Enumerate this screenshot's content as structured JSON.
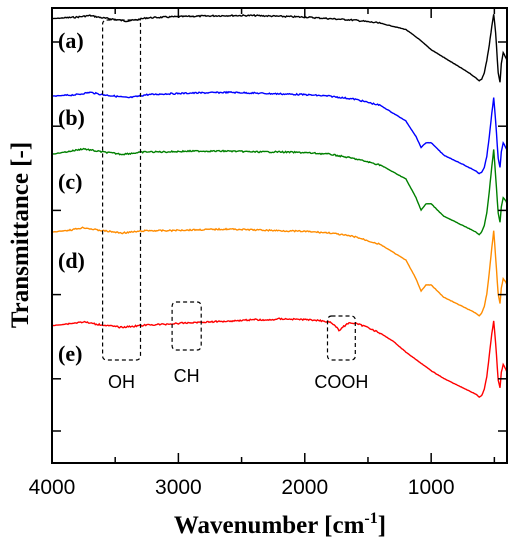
{
  "chart_data": {
    "type": "line",
    "xlabel": "Wavenumber [cm",
    "xlabel_superscript": "-1",
    "xlabel_suffix": "]",
    "ylabel": "Transmittance [-]",
    "xlim": [
      4000,
      400
    ],
    "x_reversed": true,
    "xticks": [
      4000,
      3000,
      2000,
      1000
    ],
    "xtick_labels": [
      "4000",
      "3000",
      "2000",
      "1000"
    ],
    "ylim": [
      0,
      100
    ],
    "ytick_count": 6,
    "grid": false,
    "legend": "none",
    "series": [
      {
        "name": "(a)",
        "color": "#000000",
        "offset": 85,
        "points": [
          [
            4000,
            97
          ],
          [
            3800,
            98
          ],
          [
            3700,
            99
          ],
          [
            3600,
            97.5
          ],
          [
            3500,
            96.5
          ],
          [
            3420,
            95.5
          ],
          [
            3350,
            96
          ],
          [
            3250,
            97.5
          ],
          [
            3100,
            98
          ],
          [
            2900,
            98.5
          ],
          [
            2600,
            99
          ],
          [
            2400,
            99
          ],
          [
            2200,
            98.5
          ],
          [
            2000,
            98
          ],
          [
            1800,
            97
          ],
          [
            1600,
            96
          ],
          [
            1400,
            94
          ],
          [
            1200,
            90
          ],
          [
            1100,
            84
          ],
          [
            1000,
            77
          ],
          [
            900,
            72
          ],
          [
            800,
            67
          ],
          [
            700,
            62
          ],
          [
            650,
            59
          ],
          [
            620,
            57
          ],
          [
            600,
            58
          ],
          [
            580,
            62
          ],
          [
            560,
            70
          ],
          [
            540,
            80
          ],
          [
            520,
            92
          ],
          [
            505,
            100
          ],
          [
            490,
            88
          ],
          [
            470,
            62
          ],
          [
            455,
            56
          ],
          [
            445,
            68
          ],
          [
            430,
            75
          ],
          [
            410,
            72
          ],
          [
            400,
            70
          ]
        ]
      },
      {
        "name": "(b)",
        "color": "#0000ff",
        "offset": 68,
        "points": [
          [
            4000,
            96
          ],
          [
            3800,
            97
          ],
          [
            3700,
            98.5
          ],
          [
            3600,
            97
          ],
          [
            3500,
            96
          ],
          [
            3400,
            95
          ],
          [
            3350,
            95.5
          ],
          [
            3250,
            97
          ],
          [
            3100,
            97.5
          ],
          [
            2900,
            98
          ],
          [
            2600,
            98.5
          ],
          [
            2400,
            98
          ],
          [
            2200,
            97.5
          ],
          [
            2000,
            97
          ],
          [
            1800,
            96
          ],
          [
            1600,
            94
          ],
          [
            1400,
            90
          ],
          [
            1200,
            80
          ],
          [
            1120,
            70
          ],
          [
            1080,
            63
          ],
          [
            1040,
            66
          ],
          [
            1000,
            66
          ],
          [
            950,
            62
          ],
          [
            900,
            58
          ],
          [
            800,
            54
          ],
          [
            700,
            50
          ],
          [
            650,
            48
          ],
          [
            620,
            46
          ],
          [
            600,
            47
          ],
          [
            580,
            50
          ],
          [
            560,
            57
          ],
          [
            540,
            70
          ],
          [
            520,
            85
          ],
          [
            505,
            95
          ],
          [
            490,
            80
          ],
          [
            470,
            56
          ],
          [
            455,
            50
          ],
          [
            445,
            60
          ],
          [
            430,
            66
          ],
          [
            410,
            63
          ],
          [
            400,
            61
          ]
        ]
      },
      {
        "name": "(c)",
        "color": "#008000",
        "offset": 51,
        "points": [
          [
            4000,
            96
          ],
          [
            3850,
            98
          ],
          [
            3750,
            99.5
          ],
          [
            3650,
            98
          ],
          [
            3550,
            97
          ],
          [
            3450,
            96
          ],
          [
            3380,
            96.5
          ],
          [
            3250,
            97.5
          ],
          [
            3100,
            97.5
          ],
          [
            2900,
            98
          ],
          [
            2600,
            98
          ],
          [
            2400,
            97.5
          ],
          [
            2200,
            97.5
          ],
          [
            2000,
            97
          ],
          [
            1800,
            96
          ],
          [
            1600,
            93
          ],
          [
            1400,
            89
          ],
          [
            1200,
            80
          ],
          [
            1120,
            68
          ],
          [
            1080,
            60
          ],
          [
            1040,
            64
          ],
          [
            1000,
            64
          ],
          [
            950,
            60
          ],
          [
            900,
            56
          ],
          [
            800,
            52
          ],
          [
            700,
            48
          ],
          [
            650,
            46
          ],
          [
            620,
            44
          ],
          [
            600,
            46
          ],
          [
            580,
            50
          ],
          [
            560,
            58
          ],
          [
            540,
            72
          ],
          [
            520,
            88
          ],
          [
            505,
            99
          ],
          [
            490,
            82
          ],
          [
            470,
            58
          ],
          [
            455,
            52
          ],
          [
            445,
            62
          ],
          [
            430,
            68
          ],
          [
            410,
            66
          ],
          [
            400,
            64
          ]
        ]
      },
      {
        "name": "(d)",
        "color": "#ff8c00",
        "offset": 34,
        "points": [
          [
            4000,
            96
          ],
          [
            3850,
            97.5
          ],
          [
            3750,
            99
          ],
          [
            3650,
            97.5
          ],
          [
            3550,
            96.5
          ],
          [
            3450,
            95.5
          ],
          [
            3380,
            96
          ],
          [
            3250,
            97
          ],
          [
            3100,
            97
          ],
          [
            2900,
            97.5
          ],
          [
            2600,
            98
          ],
          [
            2400,
            97.5
          ],
          [
            2200,
            97
          ],
          [
            2000,
            96.5
          ],
          [
            1800,
            95.5
          ],
          [
            1600,
            93
          ],
          [
            1400,
            88
          ],
          [
            1200,
            78
          ],
          [
            1120,
            66
          ],
          [
            1080,
            58
          ],
          [
            1040,
            62
          ],
          [
            1000,
            62
          ],
          [
            950,
            58
          ],
          [
            900,
            54
          ],
          [
            800,
            50
          ],
          [
            700,
            46
          ],
          [
            650,
            44
          ],
          [
            620,
            42
          ],
          [
            600,
            44
          ],
          [
            580,
            48
          ],
          [
            560,
            56
          ],
          [
            540,
            70
          ],
          [
            520,
            86
          ],
          [
            505,
            97
          ],
          [
            490,
            80
          ],
          [
            470,
            56
          ],
          [
            455,
            50
          ],
          [
            445,
            60
          ],
          [
            430,
            66
          ],
          [
            410,
            64
          ],
          [
            400,
            62
          ]
        ]
      },
      {
        "name": "(e)",
        "color": "#ff0000",
        "offset": 17,
        "points": [
          [
            4000,
            95
          ],
          [
            3850,
            96.5
          ],
          [
            3750,
            97.5
          ],
          [
            3650,
            96
          ],
          [
            3550,
            95
          ],
          [
            3450,
            94
          ],
          [
            3380,
            94.5
          ],
          [
            3250,
            95.5
          ],
          [
            3100,
            96
          ],
          [
            3000,
            96.5
          ],
          [
            2900,
            97
          ],
          [
            2600,
            98
          ],
          [
            2400,
            99
          ],
          [
            2300,
            98.5
          ],
          [
            2200,
            99.5
          ],
          [
            2000,
            99
          ],
          [
            1900,
            98.5
          ],
          [
            1800,
            97.5
          ],
          [
            1760,
            95
          ],
          [
            1730,
            92
          ],
          [
            1700,
            94
          ],
          [
            1650,
            97
          ],
          [
            1600,
            96.5
          ],
          [
            1500,
            94
          ],
          [
            1400,
            90
          ],
          [
            1300,
            85
          ],
          [
            1200,
            78
          ],
          [
            1100,
            72
          ],
          [
            1000,
            66
          ],
          [
            900,
            61
          ],
          [
            800,
            57
          ],
          [
            700,
            53
          ],
          [
            650,
            51
          ],
          [
            620,
            49
          ],
          [
            600,
            50
          ],
          [
            580,
            54
          ],
          [
            560,
            62
          ],
          [
            540,
            76
          ],
          [
            520,
            90
          ],
          [
            505,
            98
          ],
          [
            490,
            84
          ],
          [
            470,
            60
          ],
          [
            455,
            55
          ],
          [
            445,
            65
          ],
          [
            430,
            70
          ],
          [
            410,
            67
          ],
          [
            400,
            65
          ]
        ]
      }
    ],
    "annotations": [
      {
        "label": "OH",
        "x_range": [
          3600,
          3300
        ]
      },
      {
        "label": "CH",
        "x_range": [
          3050,
          2820
        ]
      },
      {
        "label": "COOH",
        "x_range": [
          1820,
          1600
        ]
      }
    ]
  }
}
